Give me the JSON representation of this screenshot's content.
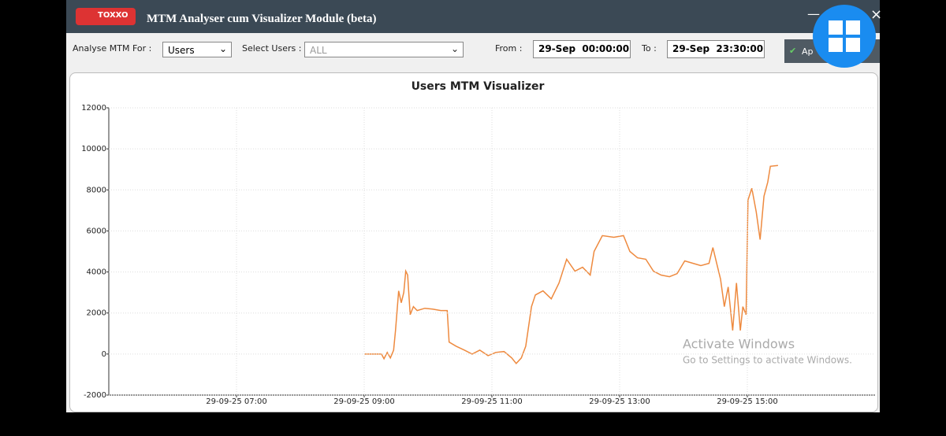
{
  "window": {
    "logo": "TOXXO",
    "title": "MTM Analyser cum Visualizer Module (beta)"
  },
  "toolbar": {
    "analyse_label": "Analyse MTM For :",
    "analyse_value": "Users",
    "users_label": "Select Users :",
    "users_value": "ALL",
    "from_label": "From :",
    "from_value": "29-Sep  00:00:00",
    "to_label": "To :",
    "to_value": "29-Sep  23:30:00",
    "button": "Ap"
  },
  "watermark": {
    "title": "Activate Windows",
    "subtitle": "Go to Settings to activate Windows."
  },
  "chart_data": {
    "type": "line",
    "title": "Users MTM Visualizer",
    "x": [
      9.0,
      9.27,
      9.31,
      9.36,
      9.41,
      9.46,
      9.49,
      9.54,
      9.58,
      9.62,
      9.65,
      9.68,
      9.72,
      9.77,
      9.83,
      9.95,
      10.07,
      10.2,
      10.3,
      10.33,
      10.44,
      10.57,
      10.69,
      10.81,
      10.94,
      11.06,
      11.19,
      11.31,
      11.38,
      11.46,
      11.53,
      11.62,
      11.68,
      11.8,
      11.93,
      12.05,
      12.17,
      12.3,
      12.42,
      12.54,
      12.6,
      12.73,
      12.91,
      13.06,
      13.16,
      13.28,
      13.41,
      13.53,
      13.65,
      13.78,
      13.9,
      14.02,
      14.15,
      14.27,
      14.4,
      14.46,
      14.52,
      14.58,
      14.64,
      14.7,
      14.77,
      14.83,
      14.89,
      14.93,
      14.98,
      15.01,
      15.07,
      15.14,
      15.2,
      15.26,
      15.32,
      15.36,
      15.48
    ],
    "series": [
      {
        "name": "MTM",
        "color": "#ee8a3f",
        "values": [
          0,
          0,
          -230,
          80,
          -190,
          190,
          1150,
          3080,
          2500,
          3000,
          4040,
          3850,
          1920,
          2310,
          2120,
          2230,
          2190,
          2120,
          2120,
          580,
          380,
          190,
          0,
          190,
          -80,
          80,
          120,
          -190,
          -460,
          -190,
          380,
          2310,
          2880,
          3080,
          2690,
          3460,
          4620,
          4040,
          4230,
          3850,
          5000,
          5770,
          5690,
          5770,
          5000,
          4690,
          4620,
          4040,
          3850,
          3770,
          3920,
          4540,
          4420,
          4310,
          4420,
          5190,
          4420,
          3650,
          2310,
          3270,
          1150,
          3460,
          1150,
          2310,
          1920,
          7500,
          8080,
          6920,
          5580,
          7690,
          8380,
          9150,
          9190
        ]
      }
    ],
    "xlim": [
      5,
      17
    ],
    "xticks": [
      {
        "value": 7,
        "label": "29-09-25 07:00"
      },
      {
        "value": 9,
        "label": "29-09-25 09:00"
      },
      {
        "value": 11,
        "label": "29-09-25 11:00"
      },
      {
        "value": 13,
        "label": "29-09-25 13:00"
      },
      {
        "value": 15,
        "label": "29-09-25 15:00"
      }
    ],
    "ylim": [
      -2000,
      12000
    ],
    "yticks": [
      -2000,
      0,
      2000,
      4000,
      6000,
      8000,
      10000,
      12000
    ],
    "grid": true
  }
}
